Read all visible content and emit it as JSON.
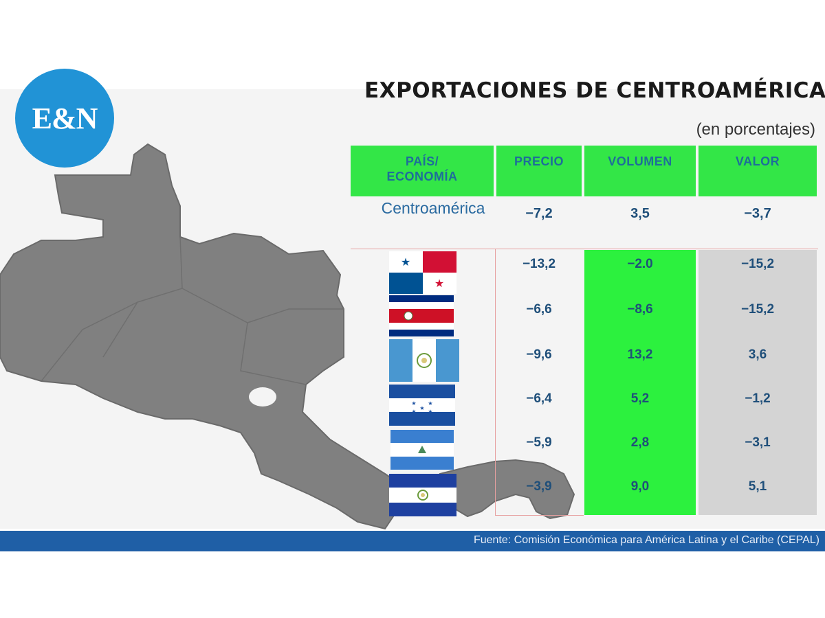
{
  "brand": {
    "logo_text": "E&N",
    "logo_color": "#2193d6"
  },
  "header": {
    "title": "EXPORTACIONES DE CENTROAMÉRICA",
    "subtitle": "(en porcentajes)"
  },
  "table": {
    "columns": [
      "PAÍS/\nECONOMÍA",
      "PRECIO",
      "VOLUMEN",
      "VALOR"
    ],
    "header_color": "#33e647",
    "aggregate": {
      "label": "Centroamérica",
      "precio": "−7,2",
      "volumen": "3,5",
      "valor": "−3,7"
    },
    "rows": [
      {
        "flag": "panama-flag",
        "precio": "−13,2",
        "volumen": "−2.0",
        "valor": "−15,2"
      },
      {
        "flag": "costa-rica-flag",
        "precio": "−6,6",
        "volumen": "−8,6",
        "valor": "−15,2"
      },
      {
        "flag": "guatemala-flag",
        "precio": "−9,6",
        "volumen": "13,2",
        "valor": "3,6"
      },
      {
        "flag": "honduras-flag",
        "precio": "−6,4",
        "volumen": "5,2",
        "valor": "−1,2"
      },
      {
        "flag": "nicaragua-flag",
        "precio": "−5,9",
        "volumen": "2,8",
        "valor": "−3,1"
      },
      {
        "flag": "el-salvador-flag",
        "precio": "−3,9",
        "volumen": "9,0",
        "valor": "5,1"
      }
    ]
  },
  "chart_data": {
    "type": "table",
    "title": "EXPORTACIONES DE CENTROAMÉRICA",
    "subtitle": "(en porcentajes)",
    "columns": [
      "PAÍS/ECONOMÍA",
      "PRECIO",
      "VOLUMEN",
      "VALOR"
    ],
    "rows": [
      {
        "country": "Centroamérica",
        "precio": -7.2,
        "volumen": 3.5,
        "valor": -3.7
      },
      {
        "country": "panama-flag",
        "precio": -13.2,
        "volumen": -2.0,
        "valor": -15.2
      },
      {
        "country": "costa-rica-flag",
        "precio": -6.6,
        "volumen": -8.6,
        "valor": -15.2
      },
      {
        "country": "guatemala-flag",
        "precio": -9.6,
        "volumen": 13.2,
        "valor": 3.6
      },
      {
        "country": "honduras-flag",
        "precio": -6.4,
        "volumen": 5.2,
        "valor": -1.2
      },
      {
        "country": "nicaragua-flag",
        "precio": -5.9,
        "volumen": 2.8,
        "valor": -3.1
      },
      {
        "country": "el-salvador-flag",
        "precio": -3.9,
        "volumen": 9.0,
        "valor": 5.1
      }
    ]
  },
  "footer": {
    "source": "Fuente: Comisión Económica para América Latina y el Caribe (CEPAL)",
    "bar_color": "#1f5fa6"
  },
  "map": {
    "fill": "#808080",
    "stroke": "#6a6a6a"
  }
}
